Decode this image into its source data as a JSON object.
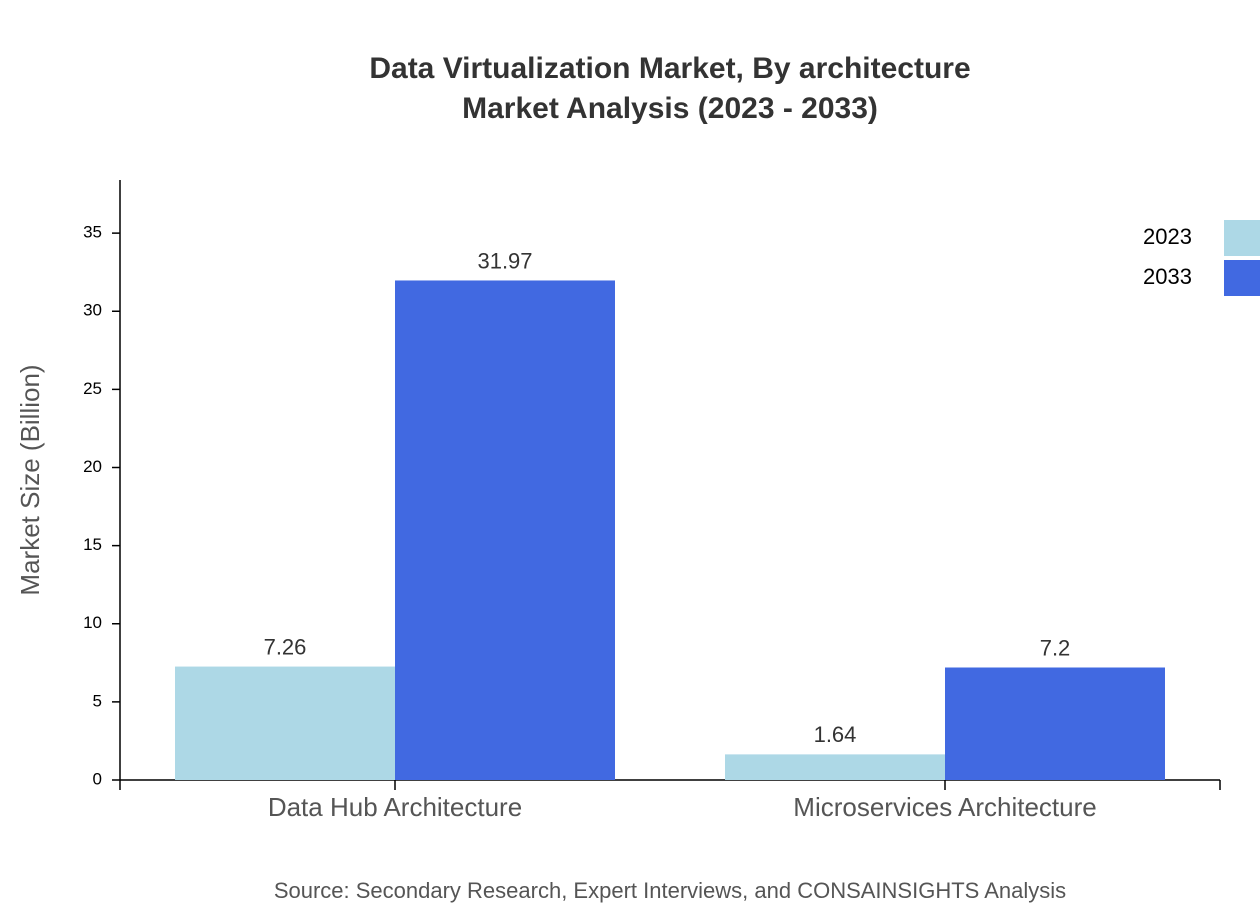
{
  "chart_data": {
    "type": "bar",
    "title": "Data Virtualization Market, By architecture",
    "subtitle": "Market Analysis (2023 - 2033)",
    "y_label": "Market Size (Billion)",
    "source": "Source: Secondary Research, Expert Interviews, and CONSAINSIGHTS Analysis",
    "categories": [
      "Data Hub Architecture",
      "Microservices Architecture"
    ],
    "series": [
      {
        "name": "2023",
        "color": "#add8e6",
        "values": [
          7.26,
          1.64
        ]
      },
      {
        "name": "2033",
        "color": "#4169e1",
        "values": [
          31.97,
          7.2
        ]
      }
    ],
    "ylim": [
      0,
      38.4
    ],
    "yticks": [
      0,
      5,
      10,
      15,
      20,
      25,
      30,
      35
    ],
    "legend": "top-right"
  }
}
